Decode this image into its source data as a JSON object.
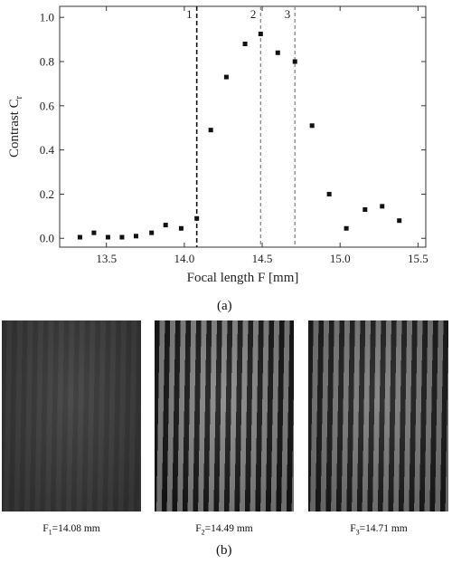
{
  "chart_data": {
    "type": "scatter",
    "xlabel": "Focal length F [mm]",
    "ylabel": "Contrast C",
    "ylabel_sub": "r",
    "xlim": [
      13.2,
      15.55
    ],
    "ylim": [
      -0.04,
      1.05
    ],
    "xticks": [
      "13.5",
      "14.0",
      "14.5",
      "15.0",
      "15.5"
    ],
    "xtick_values": [
      13.5,
      14.0,
      14.5,
      15.0,
      15.5
    ],
    "yticks": [
      "0.0",
      "0.2",
      "0.4",
      "0.6",
      "0.8",
      "1.0"
    ],
    "ytick_values": [
      0.0,
      0.2,
      0.4,
      0.6,
      0.8,
      1.0
    ],
    "points": [
      {
        "x": 13.33,
        "y": 0.005
      },
      {
        "x": 13.42,
        "y": 0.025
      },
      {
        "x": 13.51,
        "y": 0.005
      },
      {
        "x": 13.6,
        "y": 0.005
      },
      {
        "x": 13.69,
        "y": 0.01
      },
      {
        "x": 13.79,
        "y": 0.025
      },
      {
        "x": 13.88,
        "y": 0.06
      },
      {
        "x": 13.98,
        "y": 0.045
      },
      {
        "x": 14.08,
        "y": 0.09
      },
      {
        "x": 14.17,
        "y": 0.49
      },
      {
        "x": 14.27,
        "y": 0.73
      },
      {
        "x": 14.39,
        "y": 0.88
      },
      {
        "x": 14.49,
        "y": 0.925
      },
      {
        "x": 14.6,
        "y": 0.84
      },
      {
        "x": 14.71,
        "y": 0.8
      },
      {
        "x": 14.82,
        "y": 0.51
      },
      {
        "x": 14.93,
        "y": 0.2
      },
      {
        "x": 15.04,
        "y": 0.045
      },
      {
        "x": 15.16,
        "y": 0.13
      },
      {
        "x": 15.27,
        "y": 0.145
      },
      {
        "x": 15.38,
        "y": 0.08
      }
    ],
    "markers": [
      {
        "label": "1",
        "x": 14.08,
        "style": "dashed-black"
      },
      {
        "label": "2",
        "x": 14.49,
        "style": "dashed-gray"
      },
      {
        "label": "3",
        "x": 14.71,
        "style": "dashed-gray"
      }
    ],
    "grid": false
  },
  "caption_a": "(a)",
  "caption_b": "(b)",
  "photos": [
    {
      "caption_main": "F",
      "caption_sub": "1",
      "caption_rest": "=14.08 mm",
      "contrast": 0.09
    },
    {
      "caption_main": "F",
      "caption_sub": "2",
      "caption_rest": "=14.49 mm",
      "contrast": 0.925
    },
    {
      "caption_main": "F",
      "caption_sub": "3",
      "caption_rest": "=14.71 mm",
      "contrast": 0.8
    }
  ]
}
